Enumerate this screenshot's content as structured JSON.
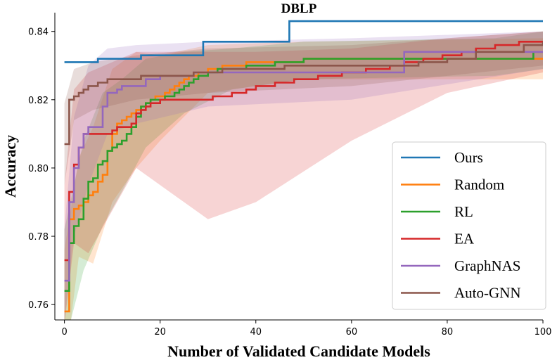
{
  "chart_data": {
    "type": "line",
    "title": "DBLP",
    "xlabel": "Number of Validated Candidate Models",
    "ylabel": "Accuracy",
    "xlim": [
      -2,
      100
    ],
    "ylim": [
      0.7555,
      0.8455
    ],
    "xticks": [
      0,
      20,
      40,
      60,
      80,
      100
    ],
    "yticks": [
      0.76,
      0.78,
      0.8,
      0.82,
      0.84
    ],
    "ytick_labels": [
      "0.76",
      "0.78",
      "0.80",
      "0.82",
      "0.84"
    ],
    "legend_position": "lower right",
    "series": [
      {
        "name": "Ours",
        "color": "#1f77b4",
        "points": [
          [
            0,
            0.831
          ],
          [
            6,
            0.831
          ],
          [
            7,
            0.832
          ],
          [
            15,
            0.832
          ],
          [
            16,
            0.833
          ],
          [
            27,
            0.833
          ],
          [
            29,
            0.837
          ],
          [
            46,
            0.837
          ],
          [
            47,
            0.843
          ],
          [
            100,
            0.843
          ]
        ],
        "band": []
      },
      {
        "name": "Random",
        "color": "#ff7f0e",
        "points": [
          [
            0,
            0.758
          ],
          [
            1,
            0.785
          ],
          [
            2,
            0.788
          ],
          [
            3,
            0.789
          ],
          [
            4,
            0.79
          ],
          [
            5,
            0.792
          ],
          [
            6,
            0.793
          ],
          [
            7,
            0.796
          ],
          [
            8,
            0.798
          ],
          [
            9,
            0.805
          ],
          [
            10,
            0.81
          ],
          [
            11,
            0.813
          ],
          [
            12,
            0.814
          ],
          [
            13,
            0.815
          ],
          [
            14,
            0.816
          ],
          [
            15,
            0.817
          ],
          [
            16,
            0.818
          ],
          [
            17,
            0.819
          ],
          [
            18,
            0.82
          ],
          [
            19,
            0.821
          ],
          [
            20,
            0.821
          ],
          [
            21,
            0.822
          ],
          [
            22,
            0.823
          ],
          [
            23,
            0.824
          ],
          [
            24,
            0.825
          ],
          [
            25,
            0.826
          ],
          [
            26,
            0.827
          ],
          [
            28,
            0.828
          ],
          [
            30,
            0.829
          ],
          [
            33,
            0.83
          ],
          [
            38,
            0.831
          ],
          [
            48,
            0.831
          ],
          [
            50,
            0.832
          ],
          [
            100,
            0.832
          ]
        ],
        "band": [
          [
            0,
            0.74,
            0.776
          ],
          [
            3,
            0.774,
            0.803
          ],
          [
            6,
            0.772,
            0.812
          ],
          [
            10,
            0.79,
            0.829
          ],
          [
            15,
            0.8,
            0.834
          ],
          [
            20,
            0.808,
            0.833
          ],
          [
            30,
            0.822,
            0.836
          ],
          [
            50,
            0.826,
            0.837
          ],
          [
            100,
            0.826,
            0.838
          ]
        ]
      },
      {
        "name": "RL",
        "color": "#2ca02c",
        "points": [
          [
            0,
            0.764
          ],
          [
            1,
            0.778
          ],
          [
            2,
            0.783
          ],
          [
            3,
            0.785
          ],
          [
            4,
            0.791
          ],
          [
            5,
            0.796
          ],
          [
            6,
            0.797
          ],
          [
            7,
            0.801
          ],
          [
            8,
            0.802
          ],
          [
            9,
            0.805
          ],
          [
            10,
            0.806
          ],
          [
            11,
            0.807
          ],
          [
            12,
            0.808
          ],
          [
            13,
            0.81
          ],
          [
            14,
            0.812
          ],
          [
            15,
            0.815
          ],
          [
            16,
            0.818
          ],
          [
            17,
            0.819
          ],
          [
            18,
            0.82
          ],
          [
            20,
            0.82
          ],
          [
            21,
            0.821
          ],
          [
            23,
            0.822
          ],
          [
            24,
            0.823
          ],
          [
            25,
            0.824
          ],
          [
            26,
            0.825
          ],
          [
            27,
            0.826
          ],
          [
            28,
            0.827
          ],
          [
            30,
            0.828
          ],
          [
            32,
            0.829
          ],
          [
            38,
            0.83
          ],
          [
            44,
            0.831
          ],
          [
            50,
            0.832
          ],
          [
            97,
            0.832
          ],
          [
            98,
            0.834
          ],
          [
            100,
            0.834
          ]
        ],
        "band": [
          [
            0,
            0.748,
            0.782
          ],
          [
            4,
            0.77,
            0.808
          ],
          [
            8,
            0.783,
            0.822
          ],
          [
            12,
            0.793,
            0.826
          ],
          [
            17,
            0.806,
            0.832
          ],
          [
            25,
            0.816,
            0.834
          ],
          [
            35,
            0.823,
            0.835
          ],
          [
            50,
            0.826,
            0.837
          ],
          [
            90,
            0.827,
            0.838
          ],
          [
            100,
            0.829,
            0.84
          ]
        ]
      },
      {
        "name": "EA",
        "color": "#d62728",
        "points": [
          [
            0,
            0.773
          ],
          [
            1,
            0.793
          ],
          [
            2,
            0.801
          ],
          [
            3,
            0.806
          ],
          [
            4,
            0.81
          ],
          [
            10,
            0.811
          ],
          [
            11,
            0.812
          ],
          [
            14,
            0.813
          ],
          [
            15,
            0.816
          ],
          [
            16,
            0.817
          ],
          [
            17,
            0.818
          ],
          [
            18,
            0.819
          ],
          [
            20,
            0.82
          ],
          [
            30,
            0.82
          ],
          [
            31,
            0.821
          ],
          [
            35,
            0.822
          ],
          [
            38,
            0.823
          ],
          [
            40,
            0.824
          ],
          [
            44,
            0.825
          ],
          [
            48,
            0.826
          ],
          [
            53,
            0.827
          ],
          [
            58,
            0.828
          ],
          [
            63,
            0.829
          ],
          [
            68,
            0.83
          ],
          [
            71,
            0.831
          ],
          [
            75,
            0.832
          ],
          [
            79,
            0.833
          ],
          [
            83,
            0.834
          ],
          [
            86,
            0.835
          ],
          [
            90,
            0.836
          ],
          [
            95,
            0.837
          ],
          [
            100,
            0.837
          ]
        ],
        "band": [
          [
            0,
            0.754,
            0.795
          ],
          [
            2,
            0.778,
            0.823
          ],
          [
            5,
            0.775,
            0.828
          ],
          [
            15,
            0.8,
            0.834
          ],
          [
            30,
            0.785,
            0.834
          ],
          [
            40,
            0.79,
            0.834
          ],
          [
            60,
            0.808,
            0.835
          ],
          [
            80,
            0.822,
            0.838
          ],
          [
            100,
            0.828,
            0.84
          ]
        ]
      },
      {
        "name": "GraphNAS",
        "color": "#9467bd",
        "points": [
          [
            0,
            0.767
          ],
          [
            1,
            0.79
          ],
          [
            2,
            0.8
          ],
          [
            3,
            0.806
          ],
          [
            4,
            0.81
          ],
          [
            5,
            0.812
          ],
          [
            7,
            0.812
          ],
          [
            8,
            0.818
          ],
          [
            9,
            0.822
          ],
          [
            10,
            0.822
          ],
          [
            11,
            0.823
          ],
          [
            12,
            0.824
          ],
          [
            16,
            0.824
          ],
          [
            17,
            0.826
          ],
          [
            19,
            0.826
          ],
          [
            20,
            0.827
          ],
          [
            26,
            0.827
          ],
          [
            27,
            0.828
          ],
          [
            70,
            0.828
          ],
          [
            71,
            0.834
          ],
          [
            100,
            0.834
          ]
        ],
        "band": [
          [
            0,
            0.755,
            0.782
          ],
          [
            2,
            0.78,
            0.815
          ],
          [
            5,
            0.795,
            0.83
          ],
          [
            9,
            0.81,
            0.835
          ],
          [
            15,
            0.813,
            0.836
          ],
          [
            30,
            0.818,
            0.837
          ],
          [
            60,
            0.82,
            0.838
          ],
          [
            100,
            0.829,
            0.84
          ]
        ]
      },
      {
        "name": "Auto-GNN",
        "color": "#8c564b",
        "points": [
          [
            0,
            0.807
          ],
          [
            1,
            0.82
          ],
          [
            2,
            0.821
          ],
          [
            3,
            0.822
          ],
          [
            4,
            0.823
          ],
          [
            5,
            0.824
          ],
          [
            7,
            0.825
          ],
          [
            9,
            0.826
          ],
          [
            15,
            0.826
          ],
          [
            16,
            0.827
          ],
          [
            27,
            0.828
          ],
          [
            33,
            0.829
          ],
          [
            46,
            0.83
          ],
          [
            73,
            0.83
          ],
          [
            74,
            0.831
          ],
          [
            80,
            0.832
          ],
          [
            86,
            0.834
          ],
          [
            96,
            0.836
          ],
          [
            100,
            0.837
          ]
        ],
        "band": [
          [
            0,
            0.795,
            0.819
          ],
          [
            2,
            0.814,
            0.829
          ],
          [
            6,
            0.817,
            0.831
          ],
          [
            15,
            0.82,
            0.833
          ],
          [
            30,
            0.822,
            0.835
          ],
          [
            60,
            0.824,
            0.836
          ],
          [
            100,
            0.83,
            0.84
          ]
        ]
      }
    ]
  }
}
